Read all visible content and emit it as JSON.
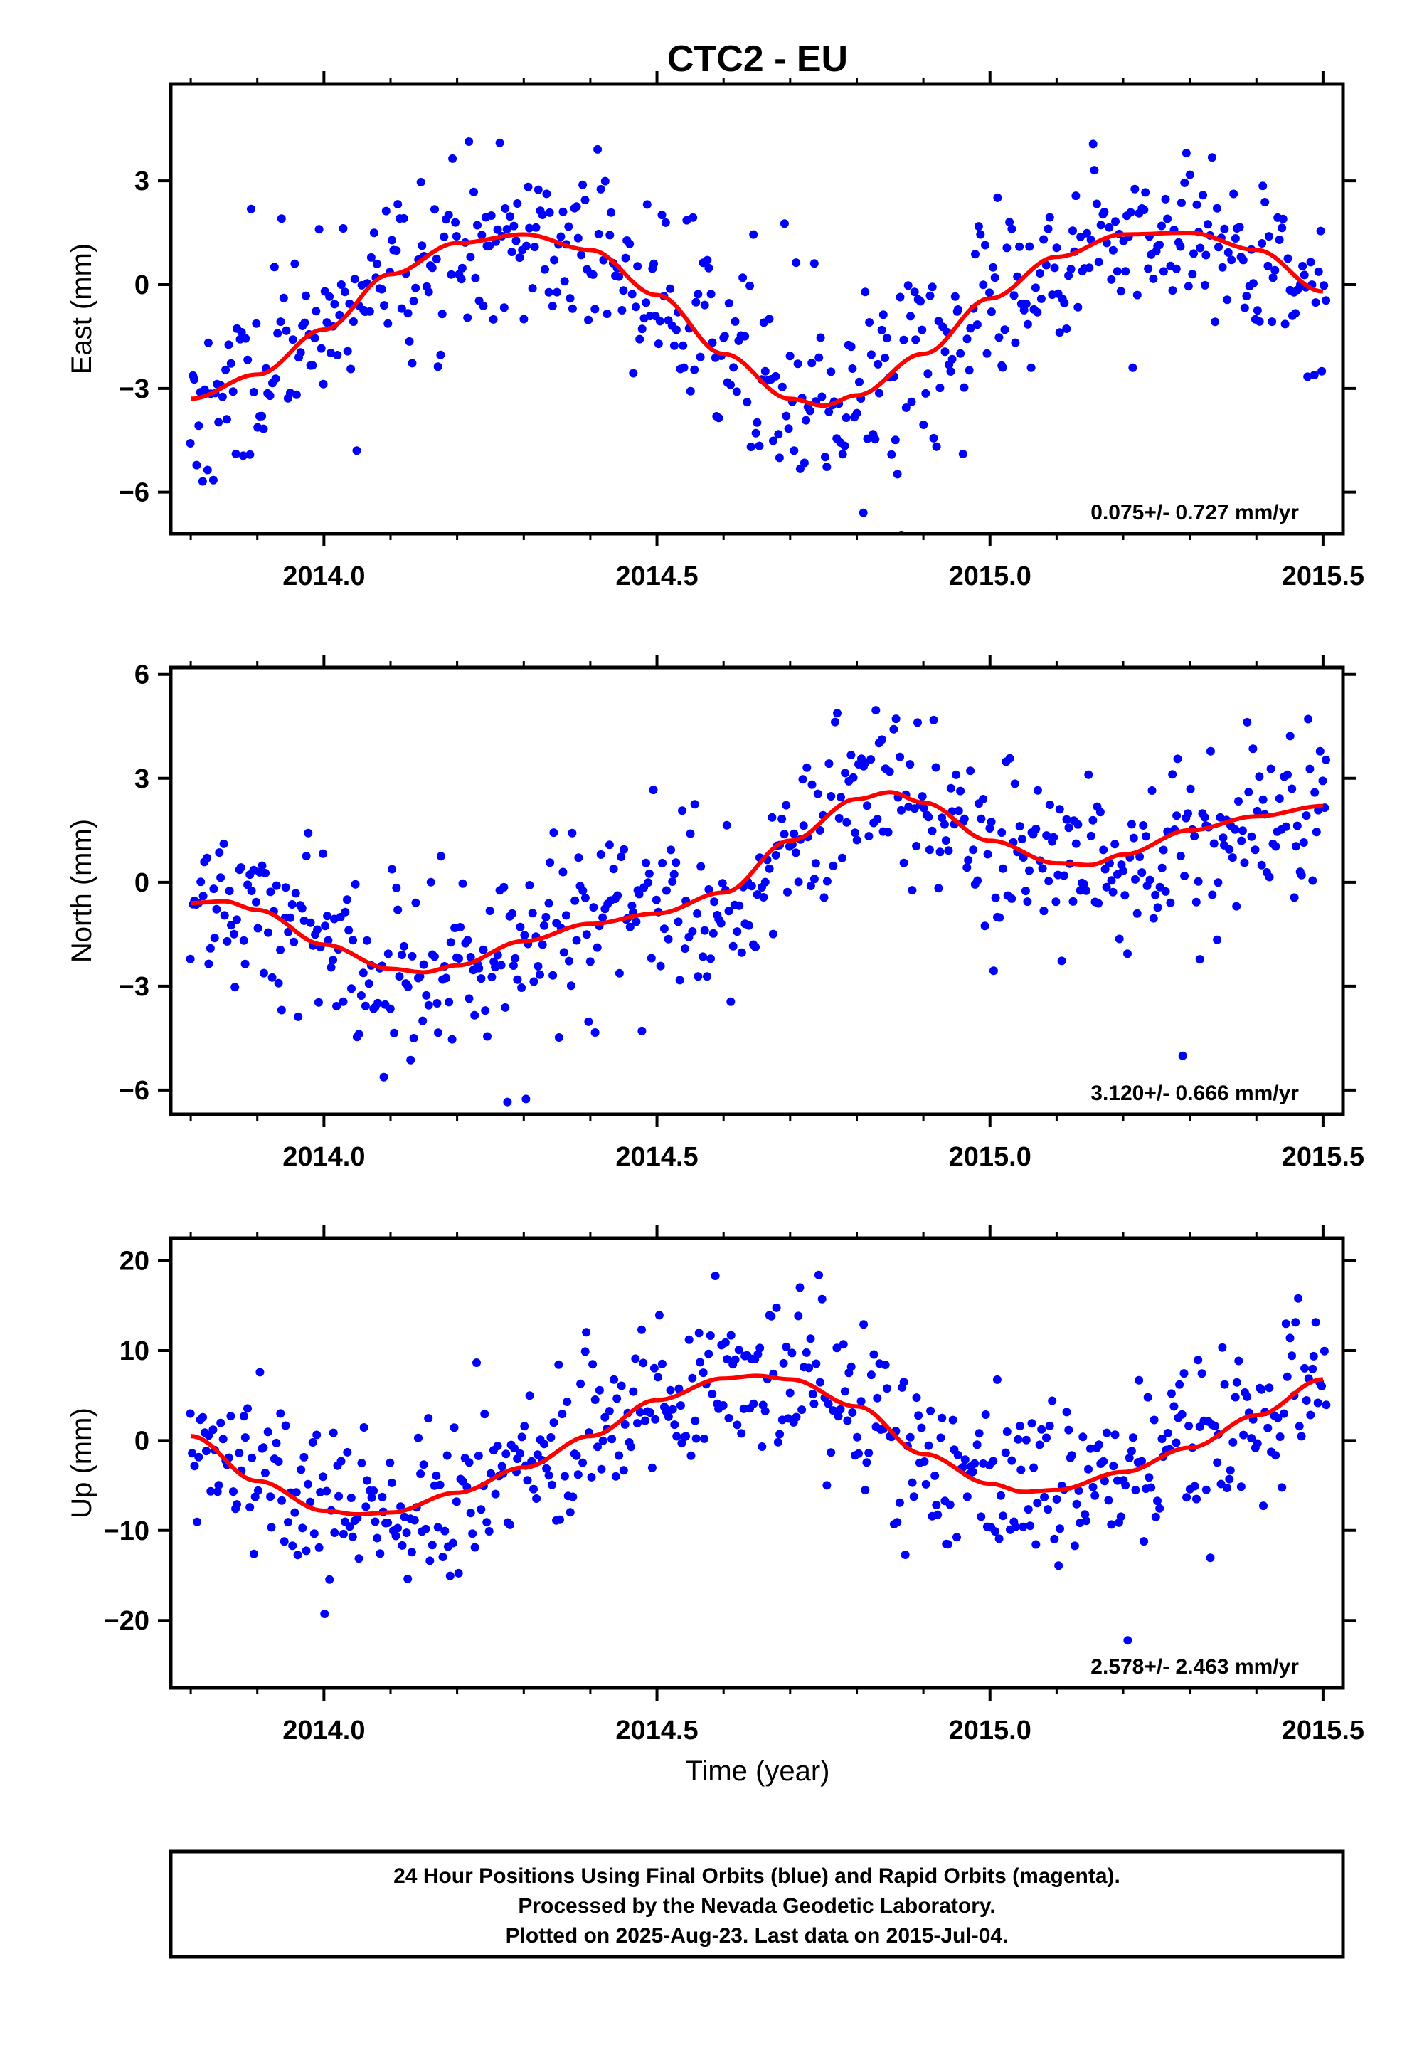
{
  "title": "CTC2 - EU",
  "xlabel": "Time (year)",
  "footer": {
    "line1": "24 Hour Positions Using Final Orbits (blue) and Rapid Orbits (magenta).",
    "line2": "Processed by the Nevada Geodetic Laboratory.",
    "line3": "Plotted on 2025-Aug-23. Last data on 2015-Jul-04."
  },
  "colors": {
    "points": "#0000ff",
    "fit": "#ff0000"
  },
  "chart_data": [
    {
      "type": "scatter",
      "ylabel": "East (mm)",
      "xlim": [
        2013.77,
        2015.53
      ],
      "ylim": [
        -7.2,
        5.8
      ],
      "xticks": [
        2014.0,
        2014.5,
        2015.0,
        2015.5
      ],
      "xtick_labels": [
        "2014.0",
        "2014.5",
        "2015.0",
        "2015.5"
      ],
      "yticks": [
        -6,
        -3,
        0,
        3
      ],
      "ytick_labels": [
        "−6",
        "−3",
        "0",
        "3"
      ],
      "rate": "0.075+/- 0.727 mm/yr",
      "fit": {
        "x": [
          2013.8,
          2013.9,
          2014.0,
          2014.1,
          2014.2,
          2014.3,
          2014.4,
          2014.5,
          2014.6,
          2014.7,
          2014.75,
          2014.8,
          2014.9,
          2015.0,
          2015.1,
          2015.2,
          2015.3,
          2015.4,
          2015.5
        ],
        "y": [
          -3.3,
          -2.6,
          -1.3,
          0.3,
          1.2,
          1.45,
          1.0,
          -0.3,
          -2.0,
          -3.3,
          -3.5,
          -3.2,
          -2.0,
          -0.4,
          0.8,
          1.45,
          1.5,
          1.0,
          -0.2
        ]
      },
      "points_generator": {
        "count": 560,
        "spread": 1.35,
        "seed": 11
      }
    },
    {
      "type": "scatter",
      "ylabel": "North (mm)",
      "xlim": [
        2013.77,
        2015.53
      ],
      "ylim": [
        -6.7,
        6.2
      ],
      "xticks": [
        2014.0,
        2014.5,
        2015.0,
        2015.5
      ],
      "xtick_labels": [
        "2014.0",
        "2014.5",
        "2015.0",
        "2015.5"
      ],
      "yticks": [
        -6,
        -3,
        0,
        3,
        6
      ],
      "ytick_labels": [
        "−6",
        "−3",
        "0",
        "3",
        "6"
      ],
      "rate": "3.120+/- 0.666 mm/yr",
      "fit": {
        "x": [
          2013.8,
          2013.85,
          2013.9,
          2014.0,
          2014.1,
          2014.15,
          2014.2,
          2014.3,
          2014.4,
          2014.5,
          2014.6,
          2014.7,
          2014.8,
          2014.85,
          2014.9,
          2015.0,
          2015.1,
          2015.15,
          2015.2,
          2015.3,
          2015.4,
          2015.5
        ],
        "y": [
          -0.6,
          -0.55,
          -0.8,
          -1.8,
          -2.5,
          -2.6,
          -2.4,
          -1.7,
          -1.2,
          -0.9,
          -0.3,
          1.2,
          2.4,
          2.6,
          2.3,
          1.2,
          0.55,
          0.5,
          0.8,
          1.5,
          1.9,
          2.2
        ]
      },
      "points_generator": {
        "count": 560,
        "spread": 1.25,
        "seed": 23
      }
    },
    {
      "type": "scatter",
      "ylabel": "Up (mm)",
      "xlim": [
        2013.77,
        2015.53
      ],
      "ylim": [
        -27.5,
        22.5
      ],
      "xticks": [
        2014.0,
        2014.5,
        2015.0,
        2015.5
      ],
      "xtick_labels": [
        "2014.0",
        "2014.5",
        "2015.0",
        "2015.5"
      ],
      "yticks": [
        -20,
        -10,
        0,
        10,
        20
      ],
      "ytick_labels": [
        "−20",
        "−10",
        "0",
        "10",
        "20"
      ],
      "rate": "2.578+/- 2.463 mm/yr",
      "fit": {
        "x": [
          2013.8,
          2013.9,
          2014.0,
          2014.05,
          2014.1,
          2014.2,
          2014.3,
          2014.4,
          2014.5,
          2014.6,
          2014.65,
          2014.7,
          2014.8,
          2014.9,
          2015.0,
          2015.05,
          2015.1,
          2015.2,
          2015.3,
          2015.4,
          2015.5
        ],
        "y": [
          0.5,
          -4.5,
          -7.8,
          -8.2,
          -8.0,
          -5.8,
          -3.0,
          0.5,
          4.5,
          6.9,
          7.2,
          6.8,
          3.8,
          -1.5,
          -4.8,
          -5.7,
          -5.5,
          -3.5,
          -0.8,
          2.8,
          6.8
        ]
      },
      "points_generator": {
        "count": 560,
        "spread": 4.6,
        "seed": 37
      }
    }
  ]
}
